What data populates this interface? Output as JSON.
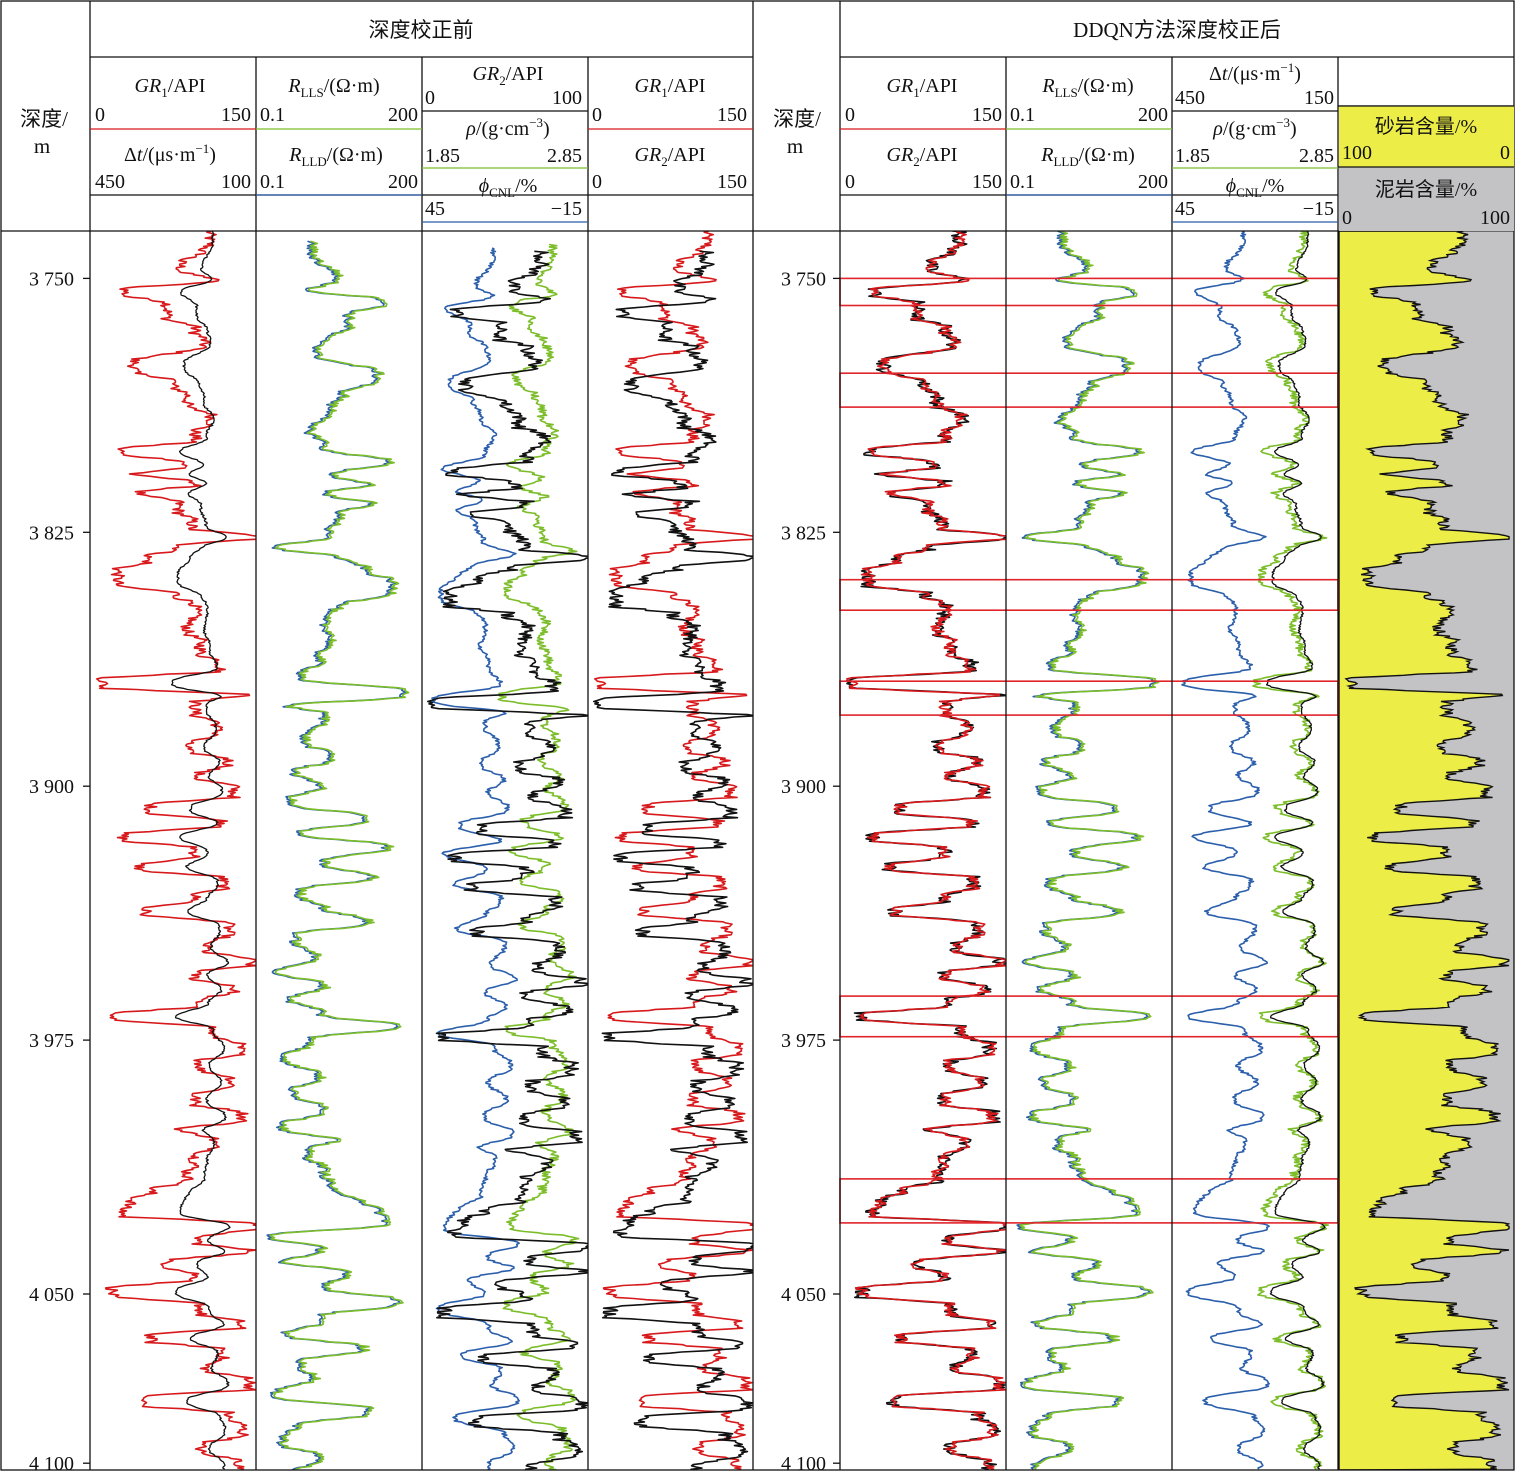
{
  "chart_data": {
    "type": "line",
    "panels": {
      "before_title": "深度校正前",
      "after_title": "DDQN方法深度校正后"
    },
    "depth_axis": {
      "label_line1": "深度/",
      "label_line2": "m",
      "ticks": [
        {
          "value": 3750,
          "label": "3 750"
        },
        {
          "value": 3825,
          "label": "3 825"
        },
        {
          "value": 3900,
          "label": "3 900"
        },
        {
          "value": 3975,
          "label": "3 975"
        },
        {
          "value": 4050,
          "label": "4 050"
        },
        {
          "value": 4100,
          "label": "4 100"
        }
      ],
      "range": [
        3736,
        4102
      ]
    },
    "colors": {
      "red": "#d7191c",
      "black": "#111111",
      "green": "#7cbd2a",
      "blue": "#2b5fab",
      "box": "#e0242a",
      "sand": "#eded48",
      "shale": "#c3c2c4"
    },
    "header_labels": {
      "gr1": "GR1/API",
      "gr2": "GR2/API",
      "dt": "Δt/(μs·m⁻¹)",
      "rlls": "RLLS/(Ω·m)",
      "rlld": "RLLD/(Ω·m)",
      "rho": "ρ/(g·cm⁻³)",
      "cnl": "φCNL/%",
      "sand": "砂岩含量/%",
      "shale": "泥岩含量/%"
    },
    "scales": {
      "gr": [
        "0",
        "150"
      ],
      "dt": [
        "450",
        "100"
      ],
      "dt_after": [
        "450",
        "150"
      ],
      "res": [
        "0.1",
        "200"
      ],
      "rho": [
        "1.85",
        "2.85"
      ],
      "cnl": [
        "45",
        "−15"
      ],
      "gr2_before_t3": [
        "0",
        "100"
      ],
      "sand": [
        "100",
        "0"
      ],
      "shale": [
        "0",
        "100"
      ]
    },
    "beds": [
      {
        "top": 3736,
        "base": 3741,
        "gr": 108
      },
      {
        "top": 3741,
        "base": 3744,
        "gr": 100
      },
      {
        "top": 3744,
        "base": 3749,
        "gr": 82
      },
      {
        "top": 3749,
        "base": 3752,
        "gr": 112
      },
      {
        "top": 3752,
        "base": 3756,
        "gr": 32
      },
      {
        "top": 3756,
        "base": 3763,
        "gr": 70
      },
      {
        "top": 3763,
        "base": 3767,
        "gr": 95
      },
      {
        "top": 3767,
        "base": 3771,
        "gr": 103
      },
      {
        "top": 3771,
        "base": 3773,
        "gr": 78
      },
      {
        "top": 3773,
        "base": 3779,
        "gr": 40
      },
      {
        "top": 3779,
        "base": 3783,
        "gr": 75
      },
      {
        "top": 3783,
        "base": 3789,
        "gr": 88
      },
      {
        "top": 3789,
        "base": 3794,
        "gr": 110
      },
      {
        "top": 3794,
        "base": 3799,
        "gr": 95
      },
      {
        "top": 3799,
        "base": 3803,
        "gr": 28
      },
      {
        "top": 3803,
        "base": 3807,
        "gr": 85
      },
      {
        "top": 3807,
        "base": 3809,
        "gr": 38
      },
      {
        "top": 3809,
        "base": 3812,
        "gr": 95
      },
      {
        "top": 3812,
        "base": 3815,
        "gr": 45
      },
      {
        "top": 3815,
        "base": 3820,
        "gr": 80
      },
      {
        "top": 3820,
        "base": 3825,
        "gr": 92
      },
      {
        "top": 3825,
        "base": 3828,
        "gr": 150
      },
      {
        "top": 3828,
        "base": 3831,
        "gr": 80
      },
      {
        "top": 3831,
        "base": 3835,
        "gr": 52
      },
      {
        "top": 3835,
        "base": 3842,
        "gr": 25
      },
      {
        "top": 3842,
        "base": 3845,
        "gr": 78
      },
      {
        "top": 3845,
        "base": 3851,
        "gr": 95
      },
      {
        "top": 3851,
        "base": 3856,
        "gr": 88
      },
      {
        "top": 3856,
        "base": 3862,
        "gr": 100
      },
      {
        "top": 3862,
        "base": 3867,
        "gr": 118
      },
      {
        "top": 3867,
        "base": 3872,
        "gr": 12
      },
      {
        "top": 3872,
        "base": 3874,
        "gr": 145
      },
      {
        "top": 3874,
        "base": 3880,
        "gr": 95
      },
      {
        "top": 3880,
        "base": 3886,
        "gr": 115
      },
      {
        "top": 3886,
        "base": 3891,
        "gr": 88
      },
      {
        "top": 3891,
        "base": 3895,
        "gr": 125
      },
      {
        "top": 3895,
        "base": 3899,
        "gr": 98
      },
      {
        "top": 3899,
        "base": 3904,
        "gr": 130
      },
      {
        "top": 3904,
        "base": 3909,
        "gr": 55
      },
      {
        "top": 3909,
        "base": 3913,
        "gr": 120
      },
      {
        "top": 3913,
        "base": 3917,
        "gr": 30
      },
      {
        "top": 3917,
        "base": 3922,
        "gr": 95
      },
      {
        "top": 3922,
        "base": 3926,
        "gr": 45
      },
      {
        "top": 3926,
        "base": 3931,
        "gr": 120
      },
      {
        "top": 3931,
        "base": 3935,
        "gr": 95
      },
      {
        "top": 3935,
        "base": 3939,
        "gr": 50
      },
      {
        "top": 3939,
        "base": 3945,
        "gr": 125
      },
      {
        "top": 3945,
        "base": 3950,
        "gr": 105
      },
      {
        "top": 3950,
        "base": 3954,
        "gr": 145
      },
      {
        "top": 3954,
        "base": 3958,
        "gr": 95
      },
      {
        "top": 3958,
        "base": 3962,
        "gr": 130
      },
      {
        "top": 3962,
        "base": 3966,
        "gr": 98
      },
      {
        "top": 3966,
        "base": 3970,
        "gr": 18
      },
      {
        "top": 3970,
        "base": 3975,
        "gr": 110
      },
      {
        "top": 3975,
        "base": 3980,
        "gr": 135
      },
      {
        "top": 3980,
        "base": 3985,
        "gr": 100
      },
      {
        "top": 3985,
        "base": 3990,
        "gr": 128
      },
      {
        "top": 3990,
        "base": 3995,
        "gr": 95
      },
      {
        "top": 3995,
        "base": 4000,
        "gr": 138
      },
      {
        "top": 4000,
        "base": 4003,
        "gr": 82
      },
      {
        "top": 4003,
        "base": 4008,
        "gr": 112
      },
      {
        "top": 4008,
        "base": 4013,
        "gr": 95
      },
      {
        "top": 4013,
        "base": 4018,
        "gr": 88
      },
      {
        "top": 4018,
        "base": 4021,
        "gr": 55
      },
      {
        "top": 4021,
        "base": 4024,
        "gr": 38
      },
      {
        "top": 4024,
        "base": 4028,
        "gr": 30
      },
      {
        "top": 4028,
        "base": 4032,
        "gr": 150
      },
      {
        "top": 4032,
        "base": 4036,
        "gr": 98
      },
      {
        "top": 4036,
        "base": 4039,
        "gr": 145
      },
      {
        "top": 4039,
        "base": 4043,
        "gr": 70
      },
      {
        "top": 4043,
        "base": 4047,
        "gr": 95
      },
      {
        "top": 4047,
        "base": 4052,
        "gr": 20
      },
      {
        "top": 4052,
        "base": 4057,
        "gr": 100
      },
      {
        "top": 4057,
        "base": 4061,
        "gr": 135
      },
      {
        "top": 4061,
        "base": 4065,
        "gr": 55
      },
      {
        "top": 4065,
        "base": 4070,
        "gr": 120
      },
      {
        "top": 4070,
        "base": 4074,
        "gr": 105
      },
      {
        "top": 4074,
        "base": 4079,
        "gr": 145
      },
      {
        "top": 4079,
        "base": 4084,
        "gr": 48
      },
      {
        "top": 4084,
        "base": 4088,
        "gr": 125
      },
      {
        "top": 4088,
        "base": 4093,
        "gr": 138
      },
      {
        "top": 4093,
        "base": 4098,
        "gr": 100
      },
      {
        "top": 4098,
        "base": 4102,
        "gr": 135
      }
    ],
    "boxes": [
      {
        "top": 3750,
        "base": 3758
      },
      {
        "top": 3778,
        "base": 3788
      },
      {
        "top": 3839,
        "base": 3848
      },
      {
        "top": 3869,
        "base": 3879
      },
      {
        "top": 3962,
        "base": 3974
      },
      {
        "top": 4016,
        "base": 4029
      }
    ]
  }
}
